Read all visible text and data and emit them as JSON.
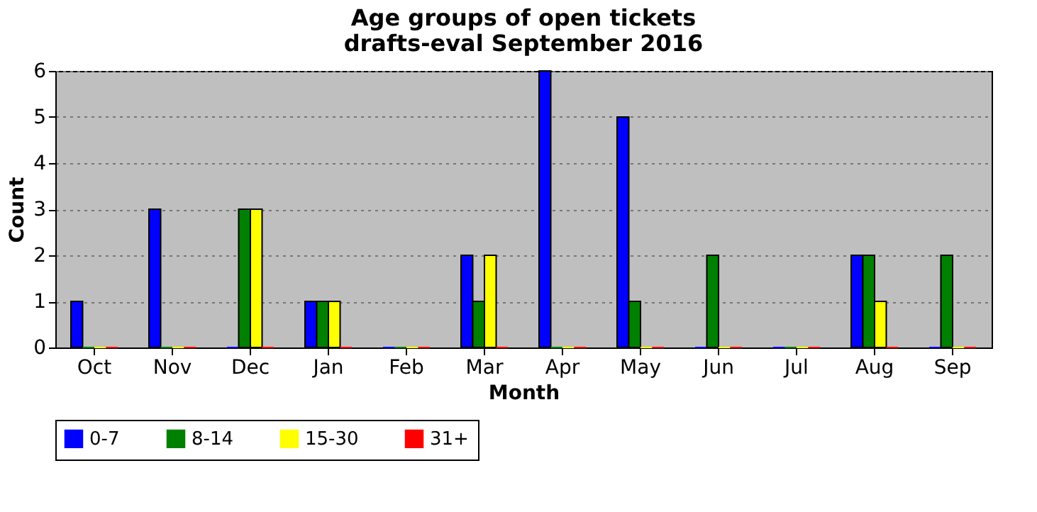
{
  "chart_data": {
    "type": "bar",
    "title": "Age groups of open tickets",
    "subtitle": "drafts-eval September 2016",
    "xlabel": "Month",
    "ylabel": "Count",
    "categories": [
      "Oct",
      "Nov",
      "Dec",
      "Jan",
      "Feb",
      "Mar",
      "Apr",
      "May",
      "Jun",
      "Jul",
      "Aug",
      "Sep"
    ],
    "series": [
      {
        "name": "0-7",
        "color": "#0000ff",
        "values": [
          1,
          3,
          0,
          1,
          0,
          2,
          6,
          5,
          0,
          0,
          2,
          0
        ]
      },
      {
        "name": "8-14",
        "color": "#008000",
        "values": [
          0,
          0,
          3,
          1,
          0,
          1,
          0,
          1,
          2,
          0,
          2,
          2
        ]
      },
      {
        "name": "15-30",
        "color": "#ffff00",
        "values": [
          0,
          0,
          3,
          1,
          0,
          2,
          0,
          0,
          0,
          0,
          1,
          0
        ]
      },
      {
        "name": "31+",
        "color": "#ff0000",
        "values": [
          0,
          0,
          0,
          0,
          0,
          0,
          0,
          0,
          0,
          0,
          0,
          0
        ]
      }
    ],
    "ylim": [
      0,
      6
    ],
    "yticks": [
      0,
      1,
      2,
      3,
      4,
      5,
      6
    ],
    "grid": "y",
    "legend": "bottom"
  }
}
